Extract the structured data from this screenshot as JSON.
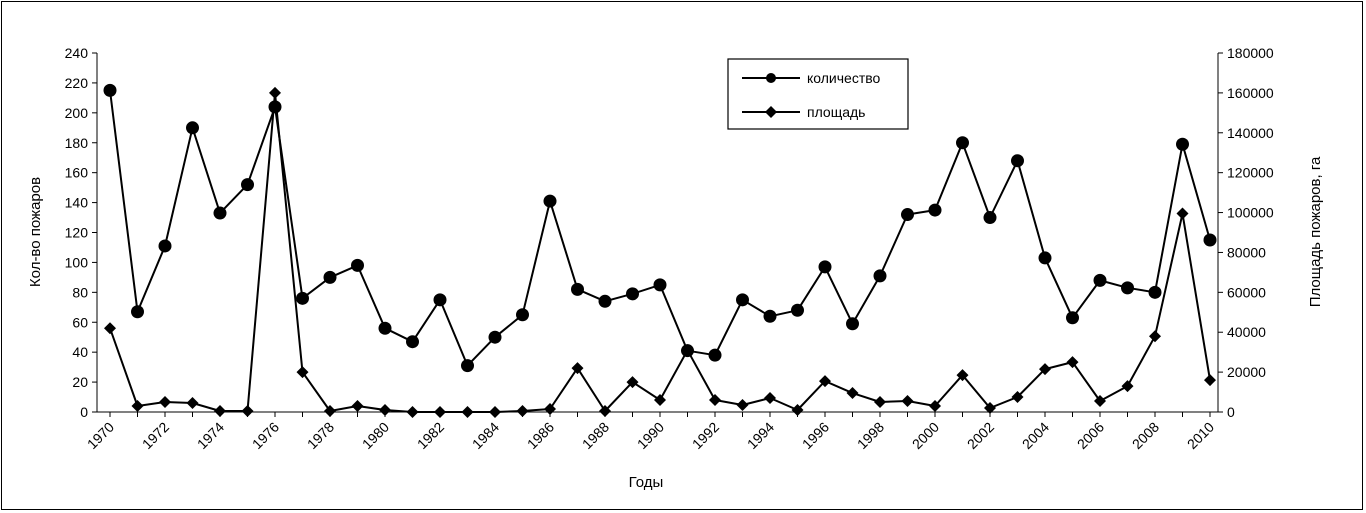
{
  "chart_data": {
    "type": "line",
    "xlabel": "Годы",
    "ylabel_left": "Кол-во пожаров",
    "ylabel_right": "Площадь пожаров, га",
    "ylim_left": [
      0,
      240
    ],
    "ylim_right": [
      0,
      180000
    ],
    "yticks_left": [
      0,
      20,
      40,
      60,
      80,
      100,
      120,
      140,
      160,
      180,
      200,
      220,
      240
    ],
    "yticks_right": [
      0,
      20000,
      40000,
      60000,
      80000,
      100000,
      120000,
      140000,
      160000,
      180000
    ],
    "x": [
      1970,
      1971,
      1972,
      1973,
      1974,
      1975,
      1976,
      1977,
      1978,
      1979,
      1980,
      1981,
      1982,
      1983,
      1984,
      1985,
      1986,
      1987,
      1988,
      1989,
      1990,
      1991,
      1992,
      1993,
      1994,
      1995,
      1996,
      1997,
      1998,
      1999,
      2000,
      2001,
      2002,
      2003,
      2004,
      2005,
      2006,
      2007,
      2008,
      2009,
      2010
    ],
    "xticks": [
      1970,
      1972,
      1974,
      1976,
      1978,
      1980,
      1982,
      1984,
      1986,
      1988,
      1990,
      1992,
      1994,
      1996,
      1998,
      2000,
      2002,
      2004,
      2006,
      2008,
      2010
    ],
    "grid": false,
    "legend_position": "top-center",
    "series": [
      {
        "name": "количество",
        "axis": "left",
        "marker": "circle",
        "values": [
          215,
          67,
          111,
          190,
          133,
          152,
          204,
          76,
          90,
          98,
          56,
          47,
          75,
          31,
          50,
          65,
          141,
          82,
          74,
          79,
          85,
          41,
          38,
          75,
          64,
          68,
          97,
          59,
          91,
          132,
          135,
          180,
          130,
          168,
          103,
          63,
          88,
          83,
          80,
          179,
          115
        ]
      },
      {
        "name": "площадь",
        "axis": "right",
        "marker": "diamond",
        "values": [
          42000,
          3000,
          5000,
          4500,
          500,
          500,
          160000,
          20000,
          500,
          3000,
          1000,
          0,
          0,
          0,
          0,
          500,
          1500,
          22000,
          500,
          15000,
          6000,
          31000,
          6000,
          3500,
          7000,
          1000,
          15500,
          9500,
          5000,
          5500,
          3000,
          18500,
          2000,
          7500,
          21500,
          25000,
          5500,
          13000,
          38000,
          99500,
          16000
        ]
      }
    ]
  }
}
